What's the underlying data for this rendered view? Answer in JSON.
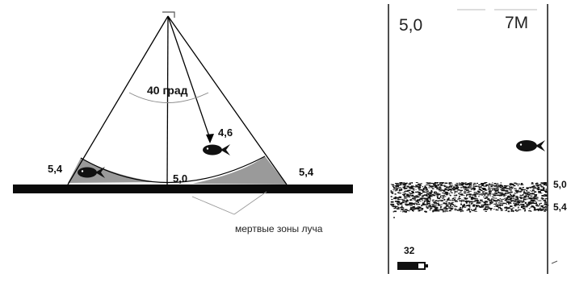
{
  "left_diagram": {
    "angle_label": "40 град",
    "fish_depth_label": "4,6",
    "left_edge_depth": "5,4",
    "center_depth": "5,0",
    "right_edge_depth": "5,4",
    "dead_zones_label": "мертвые зоны луча"
  },
  "sonar_screen": {
    "depth_reading": "5,0",
    "range_label": "7M",
    "bottom_depth_top": "5,0",
    "bottom_depth_bottom": "5,4",
    "small_number": "32"
  },
  "colors": {
    "line": "#000000",
    "dead_zone": "#9a9a9a",
    "ground": "#0a0a0a"
  }
}
